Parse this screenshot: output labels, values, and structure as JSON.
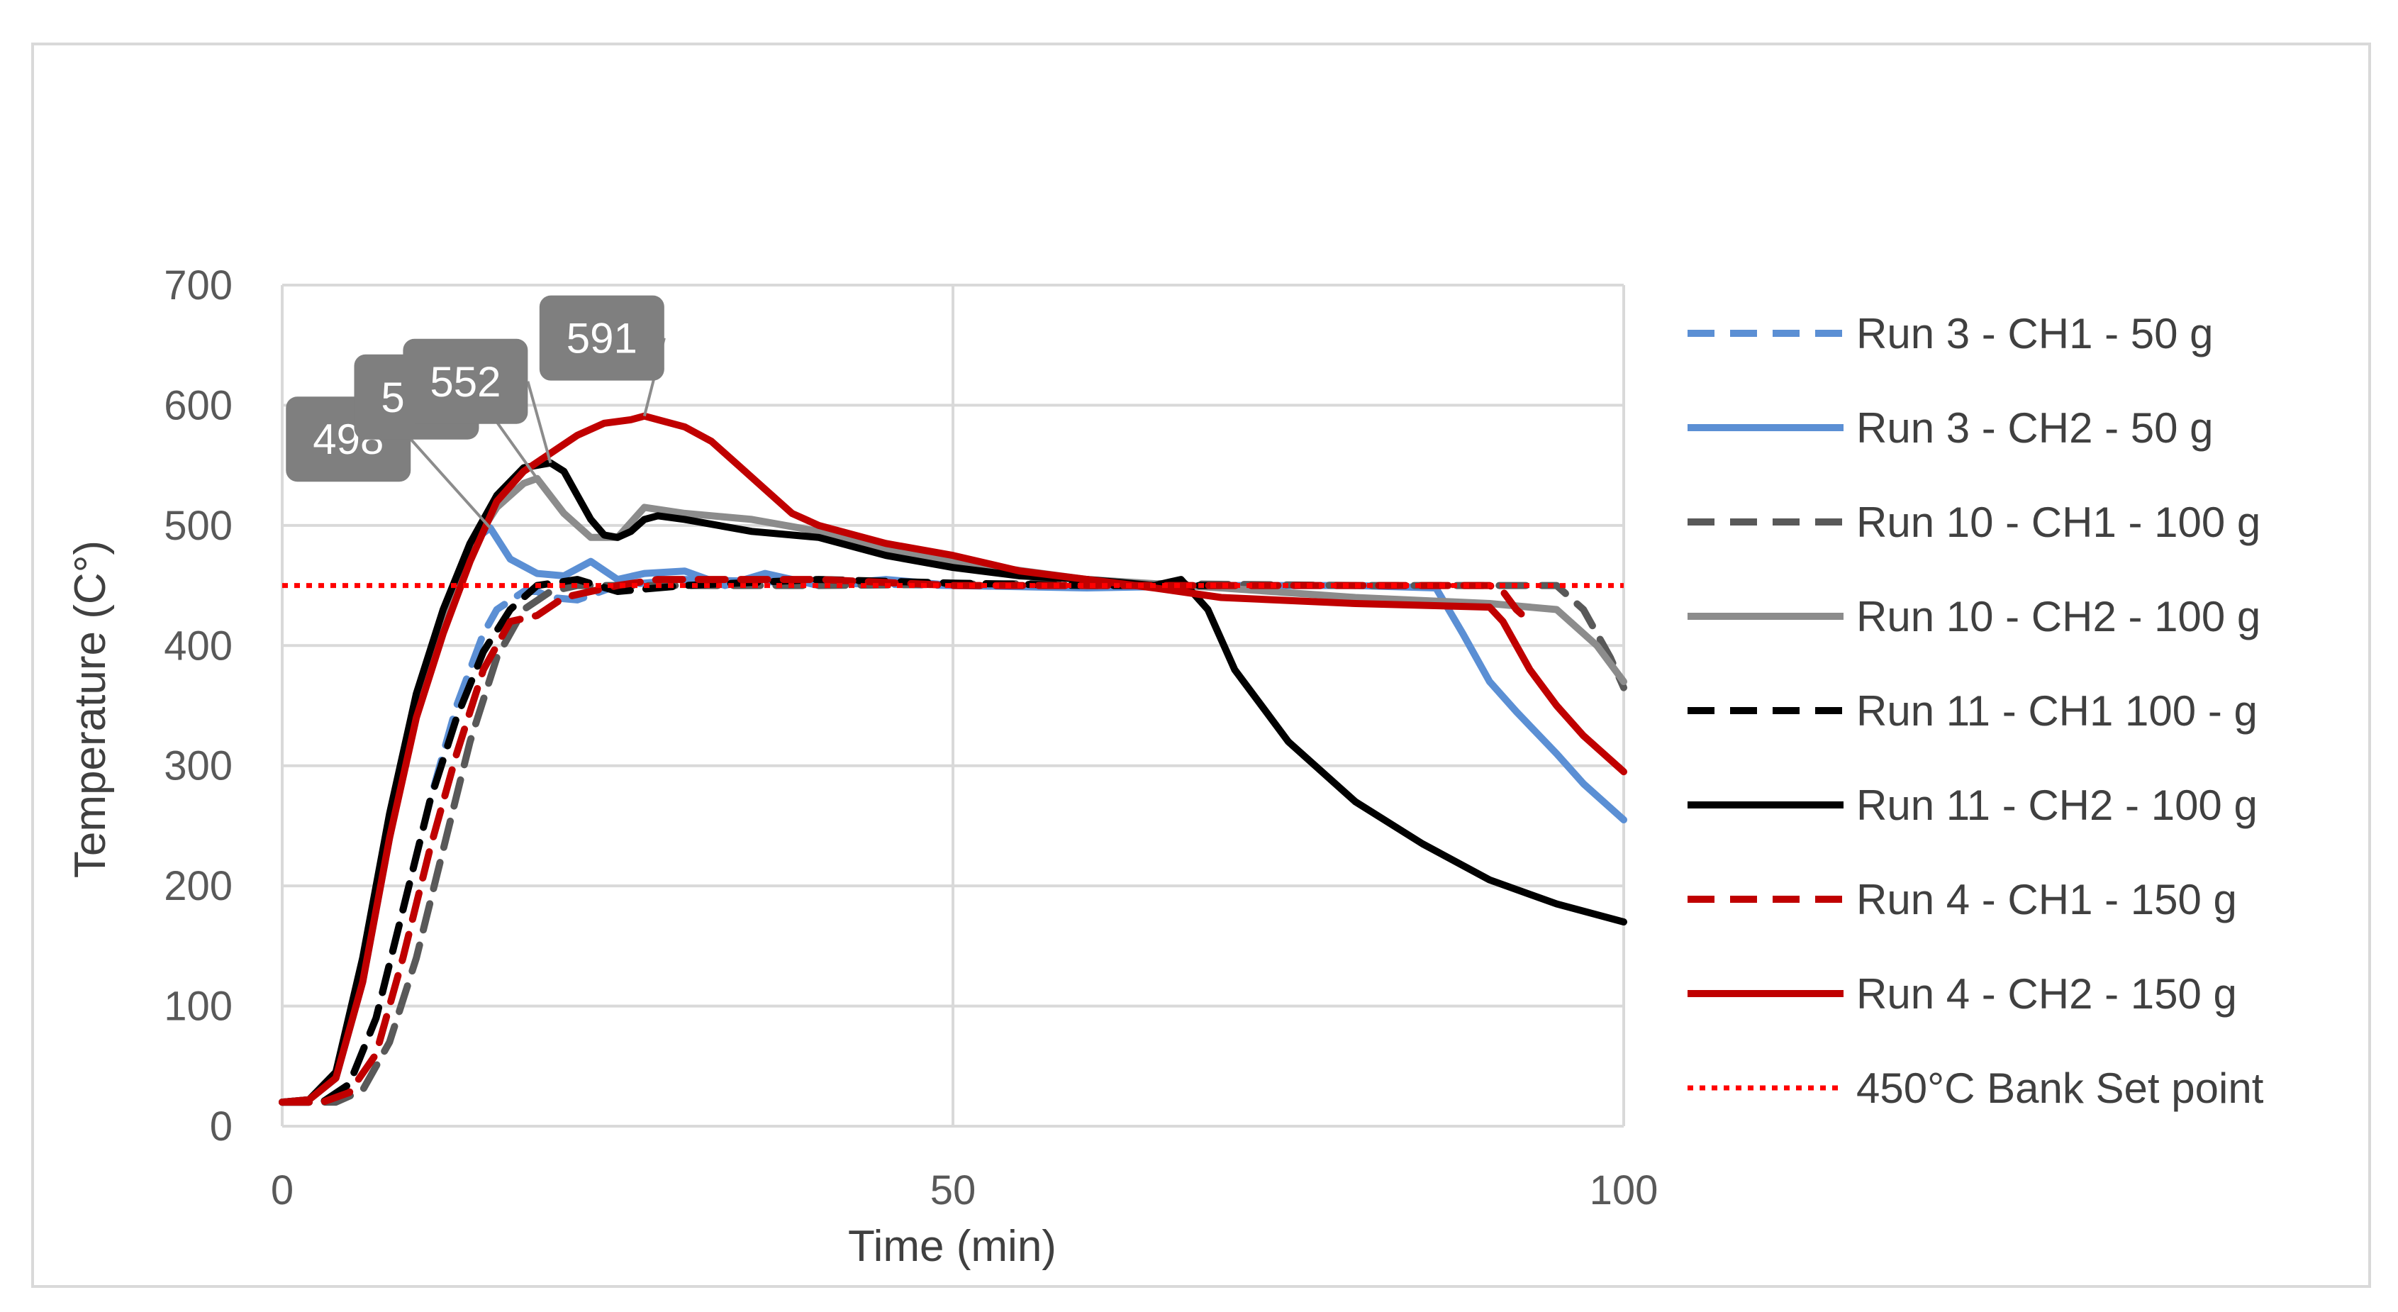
{
  "chart_data": {
    "type": "line",
    "title": "",
    "xlabel": "Time (min)",
    "ylabel": "Temperature (C°)",
    "xlim": [
      0,
      100
    ],
    "ylim": [
      0,
      700
    ],
    "xticks": [
      0,
      50,
      100
    ],
    "yticks": [
      0,
      100,
      200,
      300,
      400,
      500,
      600,
      700
    ],
    "grid": true,
    "legend_position": "right",
    "series": [
      {
        "name": "Run 3 - CH1 - 50 g",
        "color": "#5b8fd4",
        "dash": "dashed",
        "x": [
          0,
          3,
          5,
          7,
          9,
          11,
          13,
          15,
          16,
          18,
          19,
          20,
          22,
          25,
          30,
          40,
          50
        ],
        "y": [
          20,
          20,
          35,
          90,
          180,
          270,
          350,
          410,
          430,
          445,
          445,
          440,
          438,
          450,
          455,
          452,
          450
        ]
      },
      {
        "name": "Run 3 - CH2 - 50 g",
        "color": "#5b8fd4",
        "dash": "solid",
        "x": [
          0,
          2,
          4,
          6,
          8,
          10,
          12,
          14,
          15.5,
          17,
          19,
          21,
          23,
          25,
          27,
          30,
          33,
          36,
          40,
          45,
          50,
          60,
          70,
          80,
          86,
          88,
          90,
          92,
          95,
          97,
          100
        ],
        "y": [
          20,
          22,
          40,
          120,
          240,
          345,
          425,
          485,
          498,
          472,
          460,
          458,
          470,
          455,
          460,
          462,
          450,
          460,
          450,
          455,
          450,
          448,
          450,
          450,
          448,
          410,
          370,
          345,
          310,
          285,
          255
        ]
      },
      {
        "name": "Run 10 - CH1 - 100 g",
        "color": "#595959",
        "dash": "dashed",
        "x": [
          0,
          4,
          6,
          8,
          10,
          12,
          14,
          16,
          18,
          20,
          22,
          25,
          30,
          40,
          60,
          80,
          95,
          97,
          99,
          100
        ],
        "y": [
          20,
          20,
          30,
          70,
          140,
          230,
          320,
          390,
          430,
          445,
          450,
          450,
          450,
          450,
          452,
          450,
          450,
          430,
          390,
          365
        ]
      },
      {
        "name": "Run 10 - CH2 - 100 g",
        "color": "#8c8c8c",
        "dash": "solid",
        "x": [
          0,
          2,
          4,
          6,
          8,
          10,
          12,
          14,
          16,
          18,
          19,
          21,
          23,
          25,
          27,
          30,
          35,
          40,
          45,
          50,
          60,
          70,
          80,
          90,
          95,
          98,
          100
        ],
        "y": [
          20,
          22,
          45,
          130,
          250,
          350,
          420,
          480,
          515,
          535,
          539,
          510,
          490,
          490,
          515,
          510,
          505,
          495,
          480,
          470,
          455,
          448,
          440,
          435,
          430,
          400,
          370
        ]
      },
      {
        "name": "Run 11 - CH1 100 - g",
        "color": "#000000",
        "dash": "dashed",
        "x": [
          0,
          3,
          5,
          7,
          9,
          11,
          13,
          15,
          17,
          19,
          22,
          25,
          30,
          40,
          50,
          60,
          70
        ],
        "y": [
          20,
          20,
          35,
          90,
          180,
          270,
          340,
          395,
          430,
          450,
          455,
          445,
          450,
          455,
          452,
          450,
          450
        ]
      },
      {
        "name": "Run 11 - CH2 - 100 g",
        "color": "#000000",
        "dash": "solid",
        "x": [
          0,
          2,
          4,
          6,
          8,
          10,
          12,
          14,
          16,
          18,
          20,
          21,
          22,
          23,
          24,
          25,
          26,
          27,
          28,
          30,
          35,
          40,
          45,
          50,
          55,
          60,
          65,
          67,
          69,
          71,
          73,
          75,
          80,
          85,
          90,
          95,
          100
        ],
        "y": [
          20,
          22,
          45,
          140,
          260,
          360,
          430,
          485,
          525,
          548,
          552,
          545,
          525,
          505,
          492,
          490,
          495,
          505,
          508,
          505,
          495,
          490,
          475,
          465,
          458,
          455,
          450,
          455,
          430,
          380,
          350,
          320,
          270,
          235,
          205,
          185,
          170
        ]
      },
      {
        "name": "Run 4 - CH1 - 150 g",
        "color": "#c00000",
        "dash": "dashed",
        "x": [
          0,
          3,
          5,
          7,
          9,
          11,
          13,
          15,
          17,
          19,
          21,
          23,
          25,
          28,
          32,
          40,
          50,
          60,
          70,
          80,
          88,
          90,
          91,
          92,
          93
        ],
        "y": [
          20,
          20,
          28,
          60,
          140,
          230,
          310,
          380,
          420,
          425,
          440,
          445,
          450,
          455,
          455,
          455,
          450,
          450,
          450,
          450,
          450,
          450,
          445,
          430,
          420
        ]
      },
      {
        "name": "Run 4 - CH2 - 150 g",
        "color": "#c00000",
        "dash": "solid",
        "x": [
          0,
          2,
          4,
          6,
          8,
          10,
          12,
          14,
          16,
          18,
          20,
          22,
          24,
          26,
          27,
          28,
          30,
          32,
          34,
          36,
          38,
          40,
          45,
          50,
          55,
          60,
          65,
          70,
          80,
          90,
          91,
          93,
          95,
          97,
          100
        ],
        "y": [
          20,
          22,
          40,
          120,
          240,
          340,
          410,
          470,
          520,
          545,
          560,
          575,
          585,
          588,
          591,
          588,
          582,
          570,
          550,
          530,
          510,
          500,
          485,
          475,
          462,
          455,
          448,
          440,
          435,
          432,
          420,
          380,
          350,
          325,
          295
        ]
      },
      {
        "name": "450°C Bank Set point",
        "color": "#ff0000",
        "dash": "dotted",
        "x": [
          0,
          100
        ],
        "y": [
          450,
          450
        ]
      }
    ],
    "annotations": [
      {
        "label": "498",
        "series": "Run 3 - CH2 - 50 g",
        "x": 15.5,
        "y": 498
      },
      {
        "label": "539",
        "series": "Run 10 - CH2 - 100 g",
        "x": 19,
        "y": 539
      },
      {
        "label": "552",
        "series": "Run 11 - CH2 - 100 g",
        "x": 20,
        "y": 552
      },
      {
        "label": "591",
        "series": "Run 4 - CH2 - 150 g",
        "x": 27,
        "y": 591
      }
    ]
  },
  "colors": {
    "grid": "#d9d9d9",
    "callout_fill": "#7f7f7f",
    "frame": "#d9d9d9"
  }
}
